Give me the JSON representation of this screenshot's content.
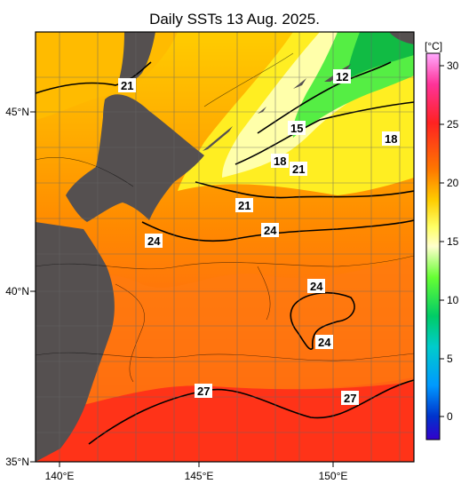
{
  "title": "Daily SSTs 13 Aug. 2025.",
  "colorbar": {
    "unit": "[°C]",
    "ticks": [
      "30",
      "25",
      "20",
      "15",
      "10",
      "5",
      "0"
    ],
    "colors": [
      "#ff99ff",
      "#ff0066",
      "#ff3300",
      "#ff9900",
      "#ffee00",
      "#ffff99",
      "#66ff33",
      "#00cc66",
      "#00cccc",
      "#0099ff",
      "#0033cc",
      "#3300cc"
    ]
  },
  "axes": {
    "lat_labels": [
      "45°N",
      "40°N",
      "35°N"
    ],
    "lon_labels": [
      "140°E",
      "145°E",
      "150°E"
    ]
  },
  "contour_labels": [
    "21",
    "12",
    "15",
    "18",
    "21",
    "18",
    "21",
    "24",
    "24",
    "24",
    "24",
    "27",
    "27"
  ],
  "colors": {
    "land": "#555050",
    "grid": "#666666"
  }
}
